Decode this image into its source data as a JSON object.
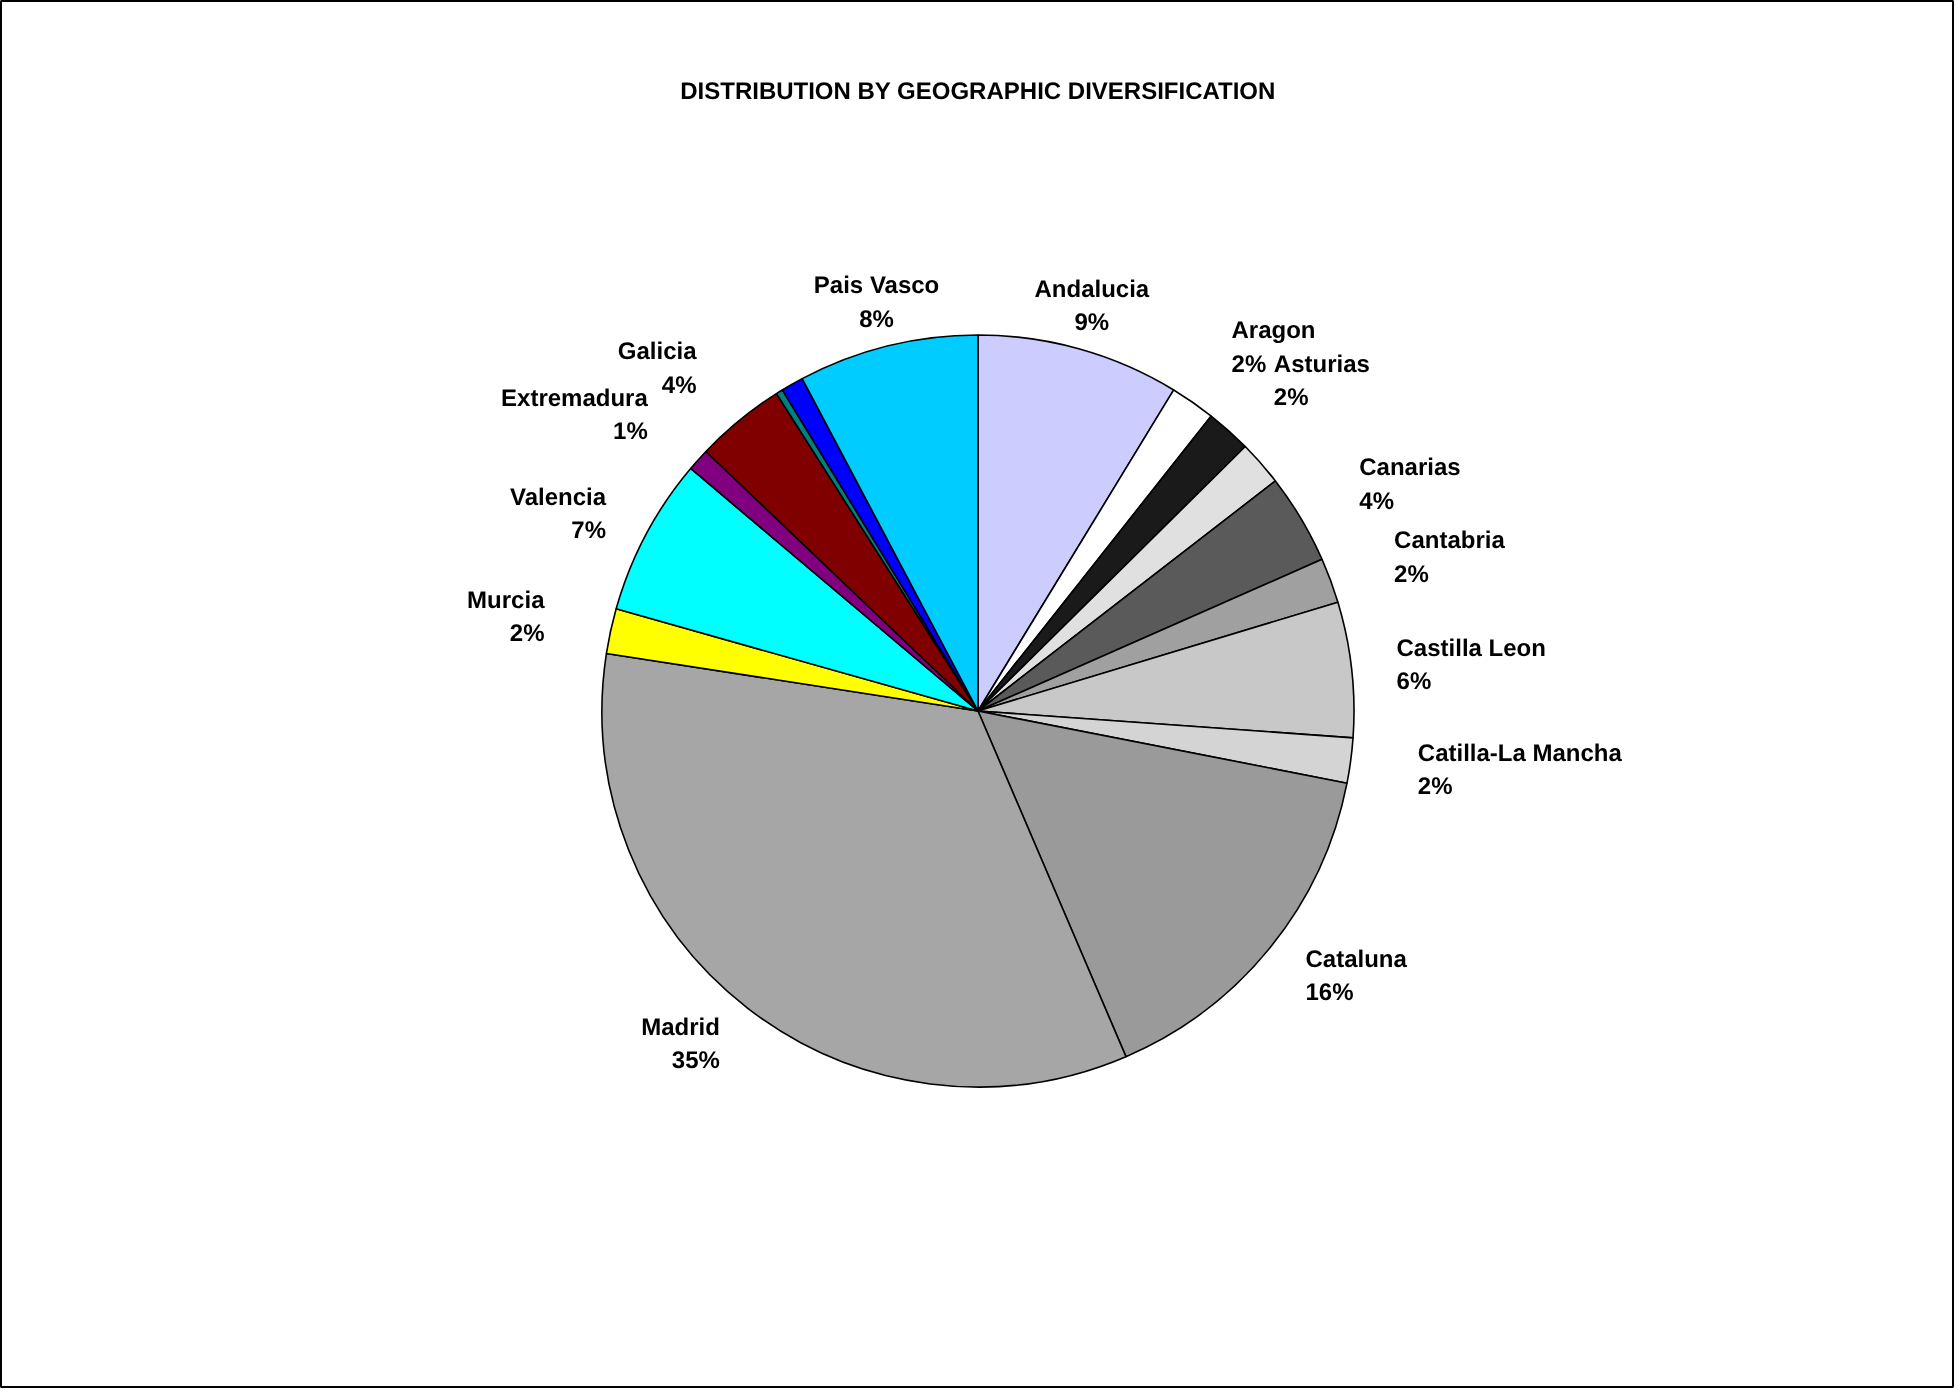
{
  "chart_data": {
    "type": "pie",
    "title": "DISTRIBUTION BY GEOGRAPHIC DIVERSIFICATION",
    "categories": [
      "Andalucia",
      "Aragon",
      "Asturias",
      null,
      "Canarias",
      "Cantabria",
      "Castilla Leon",
      "Catilla-La Mancha",
      "Cataluna",
      "Madrid",
      "Murcia",
      "Valencia",
      "Extremadura",
      "Galicia",
      null,
      null,
      "Pais Vasco"
    ],
    "values": [
      9,
      2,
      2,
      2,
      4,
      2,
      6,
      2,
      16,
      35,
      2,
      7,
      1,
      4,
      0.3,
      1,
      8
    ],
    "colors": [
      "#ccccff",
      "#ffffff",
      "#1a1a1a",
      "#e0e0e0",
      "#5a5a5a",
      "#a0a0a0",
      "#c8c8c8",
      "#d4d4d4",
      "#9a9a9a",
      "#a6a6a6",
      "#ffff00",
      "#00ffff",
      "#800080",
      "#800000",
      "#008080",
      "#0000ff",
      "#00ccff"
    ],
    "value_labels": [
      "9%",
      "2%",
      "2%",
      null,
      "4%",
      "2%",
      "6%",
      "2%",
      "16%",
      "35%",
      "2%",
      "7%",
      "1%",
      "4%",
      null,
      null,
      "8%"
    ]
  }
}
